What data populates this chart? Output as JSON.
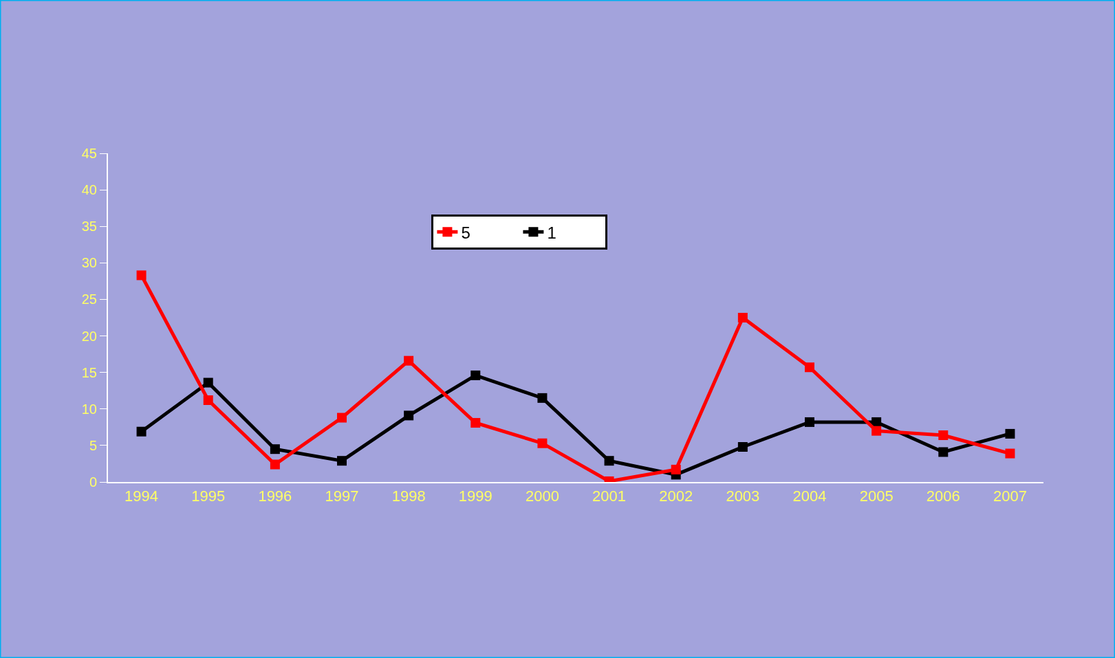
{
  "chart_data": {
    "type": "line",
    "categories": [
      "1994",
      "1995",
      "1996",
      "1997",
      "1998",
      "1999",
      "2000",
      "2001",
      "2002",
      "2003",
      "2004",
      "2005",
      "2006",
      "2007"
    ],
    "series": [
      {
        "name": "5",
        "color": "#ff0000",
        "values": [
          28.3,
          11.2,
          2.4,
          8.8,
          16.6,
          8.1,
          5.3,
          0.1,
          1.7,
          22.5,
          15.7,
          7.0,
          6.4,
          3.9
        ]
      },
      {
        "name": "1",
        "color": "#000000",
        "values": [
          6.9,
          13.6,
          4.5,
          2.9,
          9.1,
          14.6,
          11.5,
          2.9,
          1.0,
          4.8,
          8.2,
          8.2,
          4.1,
          6.6
        ]
      }
    ],
    "ylim": [
      0,
      45
    ],
    "yticks": [
      0,
      5,
      10,
      15,
      20,
      25,
      30,
      35,
      40,
      45
    ],
    "grid": false,
    "legend": "top",
    "marker": "square",
    "line_style": "solid"
  }
}
